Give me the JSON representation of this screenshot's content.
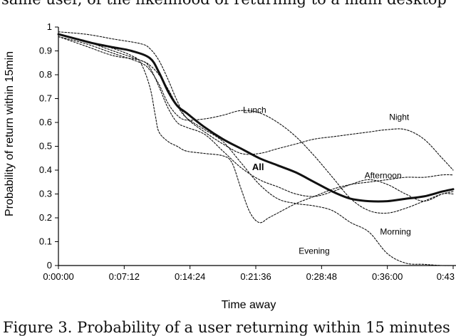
{
  "page": {
    "top_text": "same user, of the likelihood of returning to a main desktop",
    "caption": "Figure 3. Probability of a user returning within 15 minutes"
  },
  "chart_data": {
    "type": "line",
    "xlabel": "Time away",
    "ylabel": "Probability of return within 15min",
    "x_unit": "minutes",
    "xlim": [
      0,
      43.2
    ],
    "ylim": [
      0,
      1
    ],
    "x_ticks": [
      0,
      7.2,
      14.4,
      21.6,
      28.8,
      36,
      43.2
    ],
    "x_tick_labels": [
      "0:00:00",
      "0:07:12",
      "0:14:24",
      "0:21:36",
      "0:28:48",
      "0:36:00",
      "0:43"
    ],
    "y_ticks": [
      0,
      0.1,
      0.2,
      0.3,
      0.4,
      0.5,
      0.6,
      0.7,
      0.8,
      0.9,
      1
    ],
    "y_tick_labels": [
      "0",
      "0.1",
      "0.2",
      "0.3",
      "0.4",
      "0.5",
      "0.6",
      "0.7",
      "0.8",
      "0.9",
      "1"
    ],
    "grid": false,
    "legend": "none",
    "series": [
      {
        "name": "All",
        "style": "solid",
        "x": [
          0,
          2,
          4,
          6,
          8,
          10,
          11,
          12,
          13,
          14,
          16,
          18,
          20,
          22,
          24,
          26,
          28,
          30,
          32,
          34,
          36,
          38,
          40,
          42,
          43.2
        ],
        "y": [
          0.97,
          0.95,
          0.93,
          0.915,
          0.9,
          0.87,
          0.81,
          0.73,
          0.67,
          0.64,
          0.58,
          0.53,
          0.49,
          0.45,
          0.42,
          0.39,
          0.35,
          0.31,
          0.28,
          0.27,
          0.27,
          0.28,
          0.29,
          0.31,
          0.32
        ]
      },
      {
        "name": "Lunch",
        "style": "dashed",
        "x": [
          0,
          3,
          6,
          9,
          10,
          11,
          12,
          13,
          14,
          16,
          18,
          20,
          22,
          24,
          26,
          28,
          30,
          32,
          34,
          36,
          38,
          40,
          42,
          43.2
        ],
        "y": [
          0.96,
          0.93,
          0.89,
          0.85,
          0.82,
          0.76,
          0.68,
          0.63,
          0.61,
          0.615,
          0.63,
          0.65,
          0.64,
          0.6,
          0.54,
          0.46,
          0.37,
          0.28,
          0.23,
          0.22,
          0.24,
          0.27,
          0.3,
          0.3
        ]
      },
      {
        "name": "Night",
        "style": "dashed",
        "x": [
          0,
          3,
          6,
          9,
          10,
          11,
          12,
          13,
          14,
          16,
          18,
          20,
          22,
          24,
          26,
          28,
          30,
          32,
          34,
          36,
          38,
          40,
          42,
          43.2
        ],
        "y": [
          0.98,
          0.97,
          0.95,
          0.93,
          0.91,
          0.86,
          0.78,
          0.69,
          0.62,
          0.56,
          0.51,
          0.47,
          0.47,
          0.49,
          0.51,
          0.53,
          0.54,
          0.55,
          0.56,
          0.57,
          0.57,
          0.53,
          0.45,
          0.4
        ]
      },
      {
        "name": "Afternoon",
        "style": "dashed",
        "x": [
          0,
          3,
          6,
          9,
          10,
          11,
          12,
          13,
          14,
          16,
          18,
          20,
          22,
          24,
          26,
          28,
          30,
          32,
          34,
          36,
          38,
          40,
          42,
          43.2
        ],
        "y": [
          0.96,
          0.92,
          0.88,
          0.86,
          0.83,
          0.75,
          0.66,
          0.6,
          0.58,
          0.55,
          0.48,
          0.41,
          0.36,
          0.33,
          0.3,
          0.29,
          0.31,
          0.34,
          0.36,
          0.34,
          0.3,
          0.27,
          0.3,
          0.31
        ]
      },
      {
        "name": "Morning",
        "style": "dashed",
        "x": [
          0,
          3,
          6,
          9,
          10,
          11,
          12,
          13,
          14,
          16,
          18,
          20,
          22,
          24,
          26,
          28,
          30,
          32,
          34,
          36,
          38,
          40,
          42,
          43.2
        ],
        "y": [
          0.97,
          0.94,
          0.9,
          0.86,
          0.84,
          0.8,
          0.74,
          0.67,
          0.62,
          0.57,
          0.52,
          0.43,
          0.34,
          0.28,
          0.26,
          0.25,
          0.23,
          0.18,
          0.14,
          0.05,
          0.01,
          0.005,
          0.0,
          0.0
        ]
      },
      {
        "name": "Evening",
        "style": "dashed",
        "x": [
          0,
          3,
          6,
          8,
          9,
          10,
          10.6,
          11,
          12,
          13,
          14,
          16,
          18,
          19,
          20,
          21,
          22,
          23,
          24,
          26,
          28,
          30,
          32,
          34,
          36,
          38,
          40,
          42,
          43.2
        ],
        "y": [
          0.97,
          0.94,
          0.91,
          0.88,
          0.85,
          0.75,
          0.63,
          0.56,
          0.52,
          0.5,
          0.48,
          0.47,
          0.46,
          0.43,
          0.32,
          0.22,
          0.18,
          0.2,
          0.22,
          0.26,
          0.29,
          0.32,
          0.34,
          0.35,
          0.36,
          0.37,
          0.37,
          0.38,
          0.38
        ]
      }
    ],
    "labels": [
      {
        "text": "Lunch",
        "series": "Lunch",
        "x": 20.2,
        "y": 0.64
      },
      {
        "text": "Night",
        "series": "Night",
        "x": 36.2,
        "y": 0.61
      },
      {
        "text": "All",
        "series": "All",
        "x": 21.2,
        "y": 0.4
      },
      {
        "text": "Afternoon",
        "series": "Afternoon",
        "x": 33.5,
        "y": 0.365
      },
      {
        "text": "Morning",
        "series": "Morning",
        "x": 35.2,
        "y": 0.13
      },
      {
        "text": "Evening",
        "series": "Evening",
        "x": 26.3,
        "y": 0.05
      }
    ]
  }
}
